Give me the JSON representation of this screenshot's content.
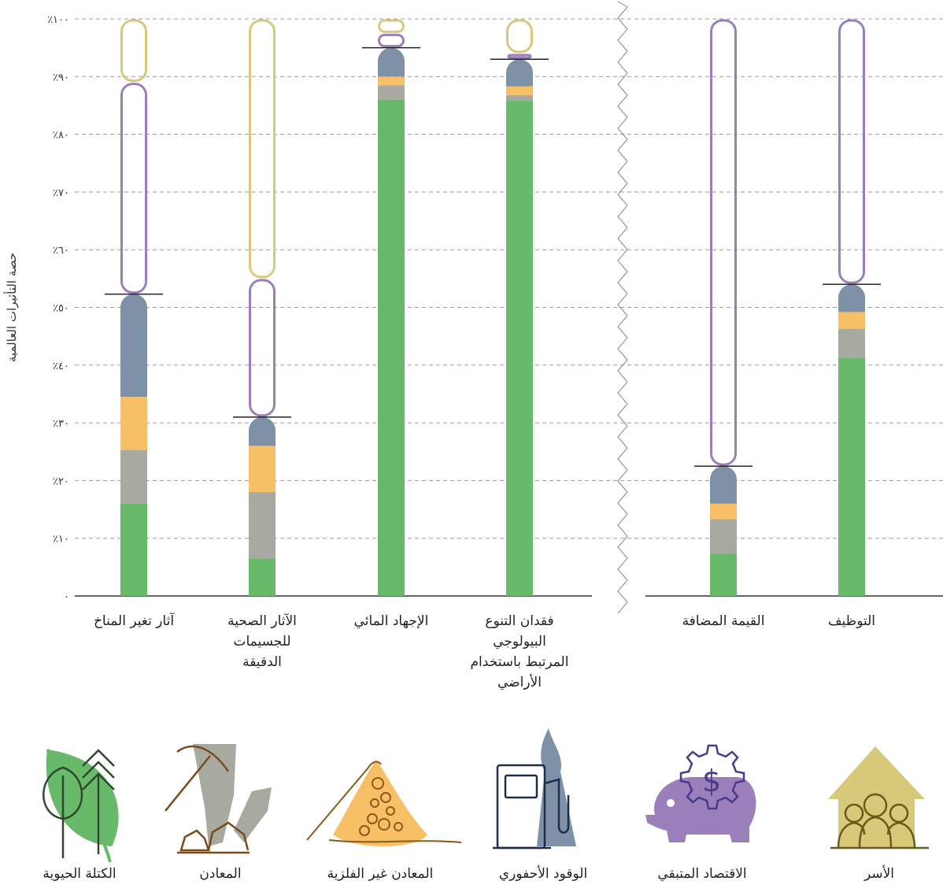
{
  "chart_data": {
    "type": "bar",
    "stacked": true,
    "ylabel": "حصة التأثيرات العالمية",
    "y_ticks": [
      "٠",
      "٪١٠",
      "٪٢٠",
      "٪٣٠",
      "٪٤٠",
      "٪٥٠",
      "٪٦٠",
      "٪٧٠",
      "٪٨٠",
      "٪٩٠",
      "٪١٠٠"
    ],
    "ylim": [
      0,
      100
    ],
    "grid": "dashed horizontal",
    "panels": [
      {
        "categories": [
          [
            "آثار تغير المناخ"
          ],
          [
            "الآثار الصحية",
            "للجسيمات",
            "الدقيقة"
          ],
          [
            "الإجهاد المائي"
          ],
          [
            "فقدان التنوع",
            "البيولوجي",
            "المرتبط باستخدام",
            "الأراضي"
          ]
        ],
        "segments": [
          [
            {
              "series": "الكتلة الحيوية",
              "from": 0,
              "to": 16
            },
            {
              "series": "المعادن",
              "from": 16,
              "to": 25.3
            },
            {
              "series": "المعادن غير الفلزية",
              "from": 25.3,
              "to": 34.5
            },
            {
              "series": "الوقود الأحفوري",
              "from": 34.5,
              "to": 52.3
            },
            {
              "series": "الاقتصاد المتبقي",
              "from": 52.3,
              "to": 89
            },
            {
              "series": "الأسر",
              "from": 89,
              "to": 100
            }
          ],
          [
            {
              "series": "الكتلة الحيوية",
              "from": 0,
              "to": 6.5
            },
            {
              "series": "المعادن",
              "from": 6.5,
              "to": 18
            },
            {
              "series": "المعادن غير الفلزية",
              "from": 18,
              "to": 26
            },
            {
              "series": "الوقود الأحفوري",
              "from": 26,
              "to": 31
            },
            {
              "series": "الاقتصاد المتبقي",
              "from": 31,
              "to": 55
            },
            {
              "series": "الأسر",
              "from": 55,
              "to": 100
            }
          ],
          [
            {
              "series": "الكتلة الحيوية",
              "from": 0,
              "to": 86
            },
            {
              "series": "المعادن",
              "from": 86,
              "to": 88.5
            },
            {
              "series": "المعادن غير الفلزية",
              "from": 88.5,
              "to": 90
            },
            {
              "series": "الوقود الأحفوري",
              "from": 90,
              "to": 95
            },
            {
              "series": "الاقتصاد المتبقي",
              "from": 95,
              "to": 97.5
            },
            {
              "series": "الأسر",
              "from": 97.5,
              "to": 100
            }
          ],
          [
            {
              "series": "الكتلة الحيوية",
              "from": 0,
              "to": 85.8
            },
            {
              "series": "المعادن",
              "from": 85.8,
              "to": 86.8
            },
            {
              "series": "المعادن غير الفلزية",
              "from": 86.8,
              "to": 88.3
            },
            {
              "series": "الوقود الأحفوري",
              "from": 88.3,
              "to": 93
            },
            {
              "series": "الاقتصاد المتبقي",
              "from": 93,
              "to": 94
            },
            {
              "series": "الأسر",
              "from": 94,
              "to": 100
            }
          ]
        ]
      },
      {
        "categories": [
          [
            "القيمة المضافة"
          ],
          [
            "التوظيف"
          ]
        ],
        "segments": [
          [
            {
              "series": "الكتلة الحيوية",
              "from": 0,
              "to": 7.3
            },
            {
              "series": "المعادن",
              "from": 7.3,
              "to": 13.3
            },
            {
              "series": "المعادن غير الفلزية",
              "from": 13.3,
              "to": 16
            },
            {
              "series": "الوقود الأحفوري",
              "from": 16,
              "to": 22.5
            },
            {
              "series": "الاقتصاد المتبقي",
              "from": 22.5,
              "to": 100
            }
          ],
          [
            {
              "series": "الكتلة الحيوية",
              "from": 0,
              "to": 41.3
            },
            {
              "series": "المعادن",
              "from": 41.3,
              "to": 46.3
            },
            {
              "series": "المعادن غير الفلزية",
              "from": 46.3,
              "to": 49.2
            },
            {
              "series": "الوقود الأحفوري",
              "from": 49.2,
              "to": 54
            },
            {
              "series": "الاقتصاد المتبقي",
              "from": 54,
              "to": 100
            }
          ]
        ]
      }
    ],
    "legend": [
      {
        "name": "الكتلة الحيوية",
        "color": "#69b96b",
        "icon": "leaf-icon"
      },
      {
        "name": "المعادن",
        "color": "#a8aaa1",
        "icon": "pickaxe-rocks-icon"
      },
      {
        "name": "المعادن غير الفلزية",
        "color": "#f7bf66",
        "icon": "sand-pile-icon"
      },
      {
        "name": "الوقود الأحفوري",
        "color": "#7f91a6",
        "icon": "fuel-pump-icon"
      },
      {
        "name": "الاقتصاد المتبقي",
        "color": "#9b7fbb",
        "icon": "piggy-bank-icon"
      },
      {
        "name": "الأسر",
        "color": "#d8c87a",
        "icon": "house-people-icon"
      }
    ]
  }
}
